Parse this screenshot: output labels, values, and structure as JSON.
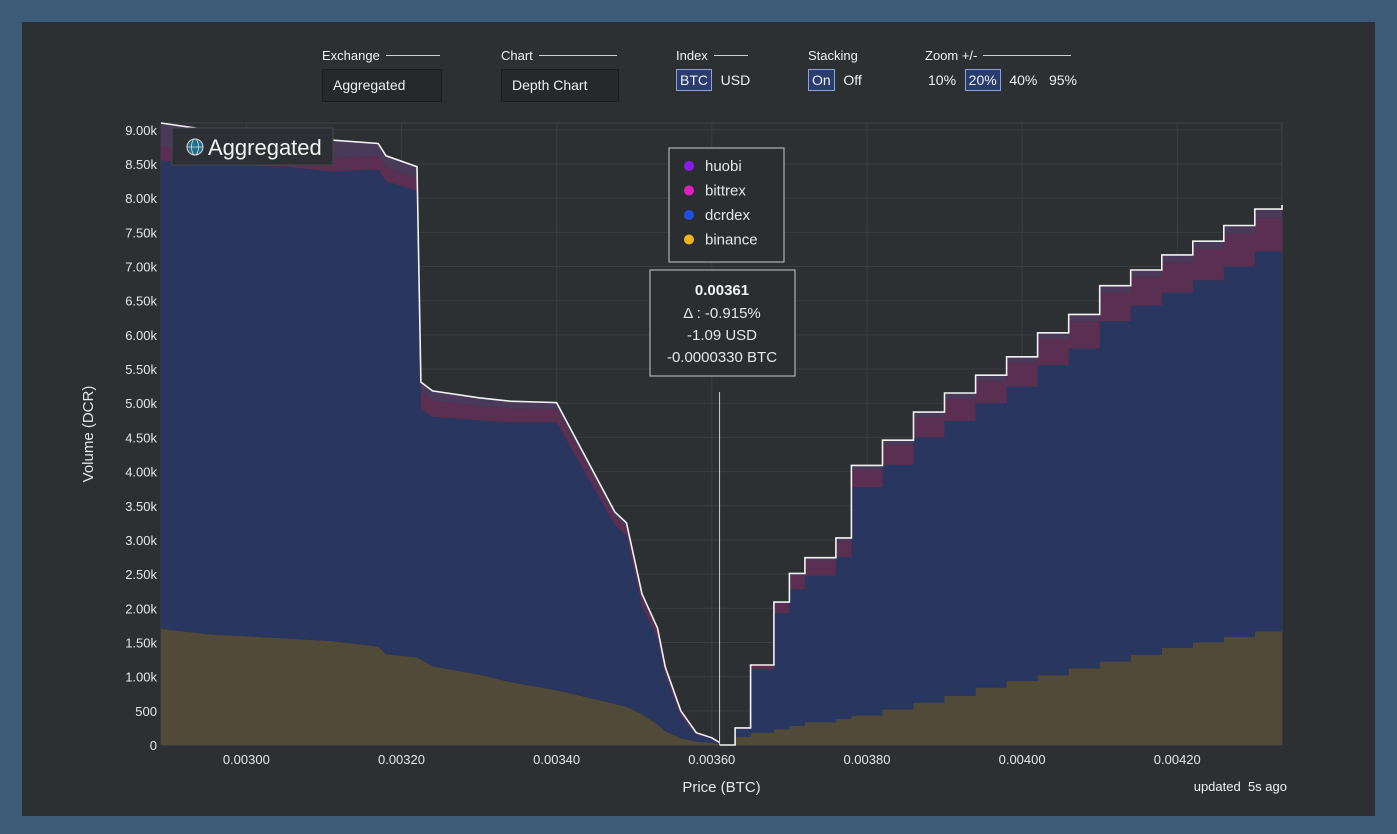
{
  "controls": {
    "exchange": {
      "label": "Exchange",
      "value": "Aggregated"
    },
    "chart": {
      "label": "Chart",
      "value": "Depth Chart"
    },
    "index": {
      "label": "Index",
      "options": [
        "BTC",
        "USD"
      ],
      "selected": "BTC"
    },
    "stacking": {
      "label": "Stacking",
      "options": [
        "On",
        "Off"
      ],
      "selected": "On"
    },
    "zoom": {
      "label": "Zoom +/-",
      "options": [
        "10%",
        "20%",
        "40%",
        "95%"
      ],
      "selected": "20%"
    }
  },
  "overlay_title": "Aggregated",
  "updated": {
    "prefix": "updated",
    "value": "5s ago"
  },
  "colors": {
    "huobi": "#8a1aec",
    "bittrex": "#e31ec0",
    "dcrdex": "#1f4ee3",
    "binance": "#f0b51a",
    "stack_huobi": "#4a3a5a",
    "stack_bittrex": "#5a2f52",
    "stack_dcrdex": "#283660",
    "stack_binance": "#514a38"
  },
  "tooltip": {
    "price": "0.00361",
    "delta": "Δ : -0.915%",
    "usd": "-1.09 USD",
    "btc": "-0.0000330 BTC"
  },
  "chart_data": {
    "type": "area",
    "stacked": true,
    "xlabel": "Price (BTC)",
    "ylabel": "Volume (DCR)",
    "xlim": [
      0.00289,
      0.004335
    ],
    "ylim": [
      0,
      9100
    ],
    "x_ticks": [
      "0.00300",
      "0.00320",
      "0.00340",
      "0.00360",
      "0.00380",
      "0.00400",
      "0.00420"
    ],
    "y_ticks": [
      "0",
      "500",
      "1.00k",
      "1.50k",
      "2.00k",
      "2.50k",
      "3.00k",
      "3.50k",
      "4.00k",
      "4.50k",
      "5.00k",
      "5.50k",
      "6.00k",
      "6.50k",
      "7.00k",
      "7.50k",
      "8.00k",
      "8.50k",
      "9.00k"
    ],
    "legend": [
      "huobi",
      "bittrex",
      "dcrdex",
      "binance"
    ],
    "legend_position": "top-center",
    "grid": true,
    "cursor_price": 0.00361,
    "bids": {
      "x": [
        0.00289,
        0.00295,
        0.00305,
        0.00311,
        0.00317,
        0.00318,
        0.00322,
        0.003225,
        0.00324,
        0.0033,
        0.00334,
        0.0034,
        0.003475,
        0.00349,
        0.00351,
        0.00353,
        0.00354,
        0.00356,
        0.00358,
        0.0036,
        0.00361
      ],
      "binance": [
        1700,
        1620,
        1560,
        1520,
        1440,
        1330,
        1280,
        1250,
        1150,
        1030,
        920,
        800,
        600,
        560,
        450,
        300,
        200,
        100,
        50,
        30,
        10
      ],
      "dcrdex": [
        6850,
        6880,
        6900,
        6870,
        6980,
        6920,
        6830,
        3660,
        3650,
        3720,
        3800,
        3920,
        2620,
        2500,
        1580,
        1260,
        820,
        320,
        100,
        60,
        20
      ],
      "bittrex": [
        200,
        180,
        180,
        200,
        200,
        200,
        180,
        250,
        240,
        210,
        210,
        200,
        120,
        120,
        120,
        100,
        80,
        50,
        20,
        10,
        5
      ],
      "huobi": [
        350,
        320,
        280,
        260,
        180,
        170,
        170,
        150,
        140,
        120,
        100,
        90,
        70,
        70,
        60,
        50,
        40,
        30,
        10,
        5,
        0
      ]
    },
    "asks": {
      "x": [
        0.00361,
        0.00363,
        0.00365,
        0.00368,
        0.0037,
        0.00372,
        0.00376,
        0.00378,
        0.00382,
        0.00386,
        0.0039,
        0.00394,
        0.00398,
        0.00402,
        0.00406,
        0.0041,
        0.00414,
        0.00418,
        0.00422,
        0.00426,
        0.0043,
        0.004335
      ],
      "binance": [
        0,
        120,
        180,
        230,
        280,
        330,
        380,
        430,
        520,
        620,
        720,
        840,
        940,
        1020,
        1120,
        1220,
        1320,
        1420,
        1500,
        1580,
        1660,
        1700
      ],
      "dcrdex": [
        0,
        120,
        920,
        1700,
        2000,
        2150,
        2370,
        3340,
        3580,
        3880,
        4020,
        4160,
        4300,
        4540,
        4680,
        4980,
        5110,
        5200,
        5300,
        5420,
        5560,
        5580
      ],
      "bittrex": [
        0,
        10,
        60,
        140,
        200,
        220,
        230,
        260,
        290,
        300,
        330,
        330,
        350,
        380,
        400,
        420,
        420,
        440,
        460,
        480,
        500,
        500
      ],
      "huobi": [
        0,
        0,
        10,
        20,
        30,
        40,
        50,
        60,
        70,
        70,
        80,
        80,
        90,
        90,
        100,
        100,
        100,
        110,
        110,
        120,
        120,
        120
      ]
    }
  }
}
